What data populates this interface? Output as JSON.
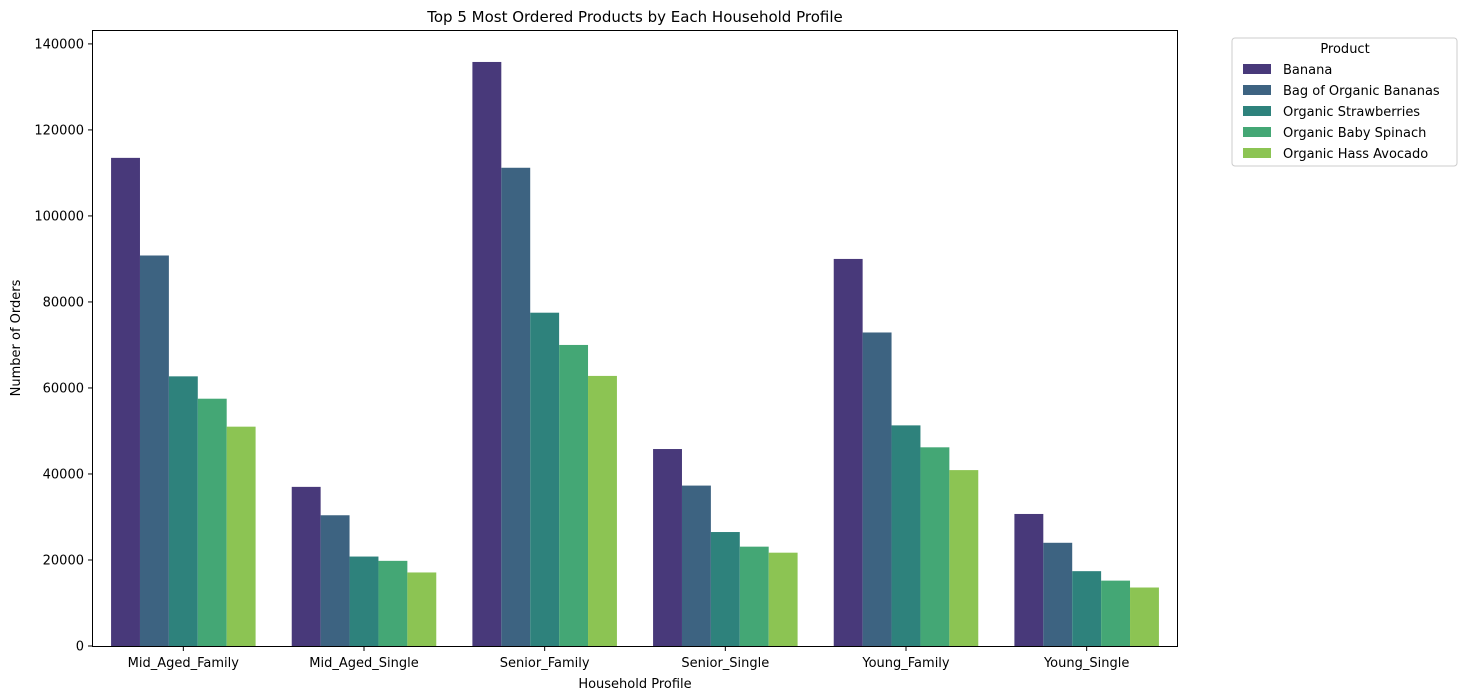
{
  "chart_data": {
    "type": "bar",
    "title": "Top 5 Most Ordered Products by Each Household Profile",
    "xlabel": "Household Profile",
    "ylabel": "Number of Orders",
    "ylim": [
      0,
      143000
    ],
    "yticks": [
      0,
      20000,
      40000,
      60000,
      80000,
      100000,
      120000,
      140000
    ],
    "categories": [
      "Mid_Aged_Family",
      "Mid_Aged_Single",
      "Senior_Family",
      "Senior_Single",
      "Young_Family",
      "Young_Single"
    ],
    "series": [
      {
        "name": "Banana",
        "color": "#48397a",
        "values": [
          113500,
          37000,
          135800,
          45800,
          90000,
          30700
        ]
      },
      {
        "name": "Bag of Organic Bananas",
        "color": "#3d6381",
        "values": [
          90800,
          30400,
          111200,
          37300,
          72900,
          24000
        ]
      },
      {
        "name": "Organic Strawberries",
        "color": "#2e827c",
        "values": [
          62700,
          20800,
          77500,
          26500,
          51300,
          17400
        ]
      },
      {
        "name": "Organic Baby Spinach",
        "color": "#44a775",
        "values": [
          57500,
          19800,
          70000,
          23100,
          46200,
          15200
        ]
      },
      {
        "name": "Organic Hass Avocado",
        "color": "#8cc453",
        "values": [
          51000,
          17100,
          62800,
          21700,
          40900,
          13600
        ]
      }
    ],
    "legend": {
      "title": "Product",
      "placement": "outside-top-right"
    },
    "grid": false
  }
}
